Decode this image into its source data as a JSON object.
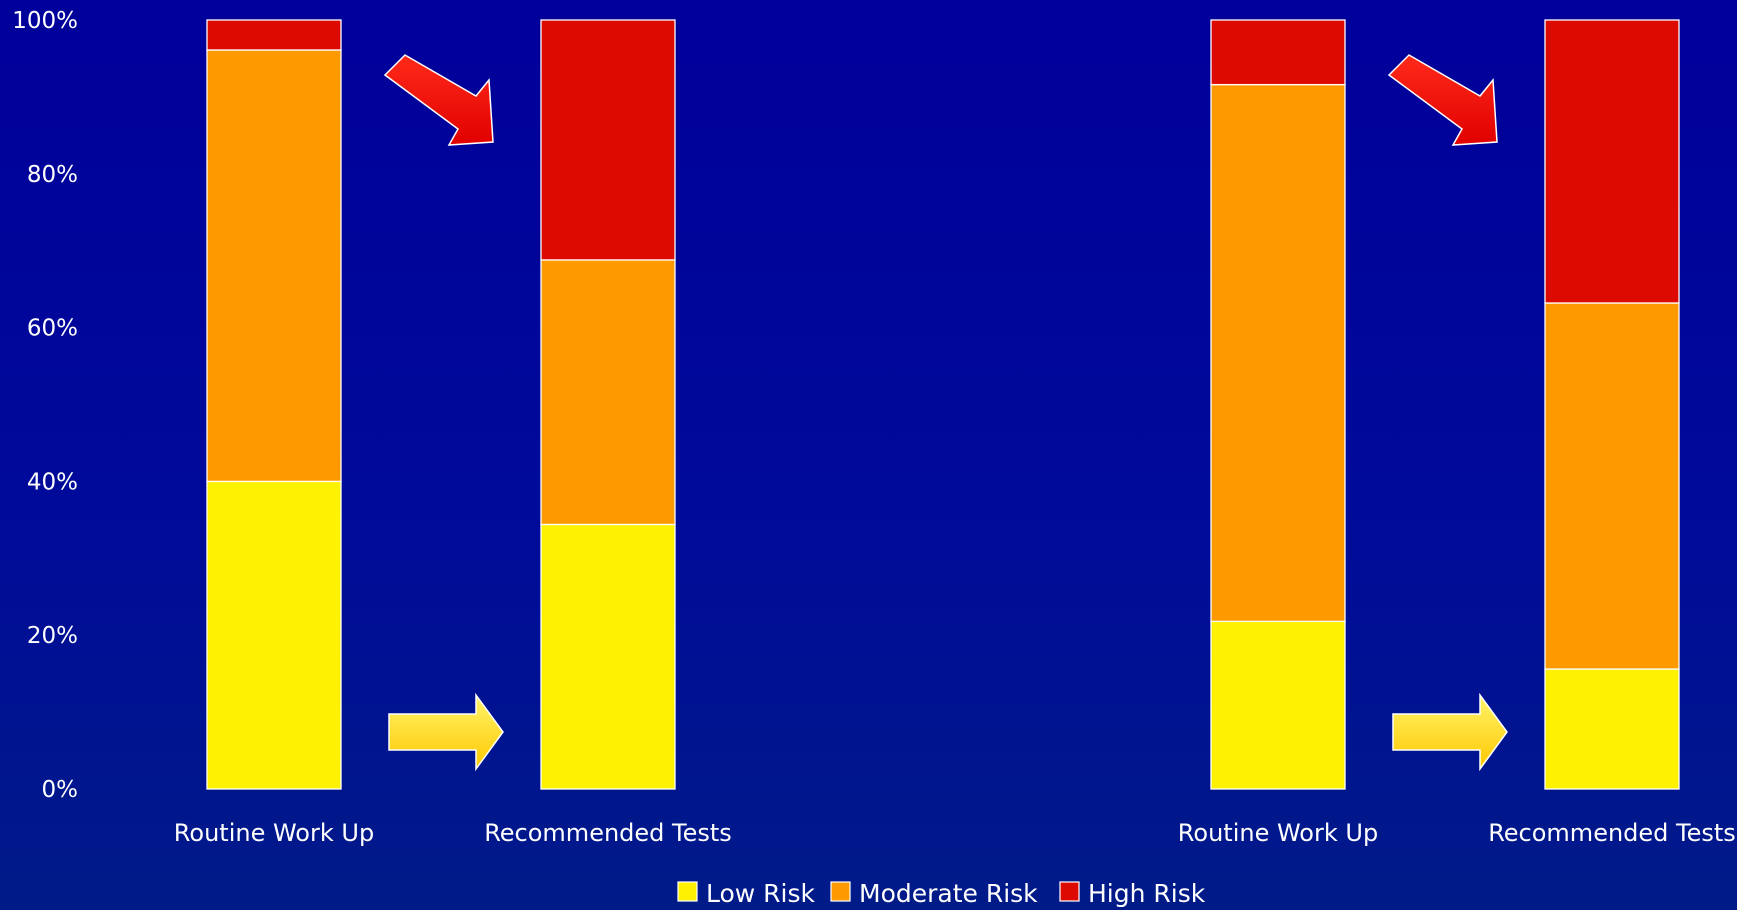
{
  "chart_data": {
    "type": "bar",
    "stacked": true,
    "normalized": true,
    "ylim": [
      0,
      100
    ],
    "yticks": [
      "0%",
      "20%",
      "40%",
      "60%",
      "80%",
      "100%"
    ],
    "grid": false,
    "legend_position": "bottom-center",
    "categories": [
      "Routine Work Up",
      "Recommended Tests",
      "Routine Work Up",
      "Recommended Tests"
    ],
    "series": [
      {
        "name": "Low Risk",
        "color": "#fff200",
        "values": [
          40,
          34.4,
          21.8,
          15.6
        ]
      },
      {
        "name": "Moderate Risk",
        "color": "#ff9900",
        "values": [
          56.1,
          34.4,
          69.8,
          47.6
        ]
      },
      {
        "name": "High Risk",
        "color": "#dc0a00",
        "values": [
          3.9,
          31.2,
          8.4,
          36.8
        ]
      }
    ],
    "annotations": [
      {
        "type": "arrow",
        "color": "red",
        "direction": "down-right",
        "between": [
          0,
          1
        ]
      },
      {
        "type": "arrow",
        "color": "yellow",
        "direction": "right",
        "between": [
          0,
          1
        ]
      },
      {
        "type": "arrow",
        "color": "red",
        "direction": "down-right",
        "between": [
          2,
          3
        ]
      },
      {
        "type": "arrow",
        "color": "yellow",
        "direction": "right",
        "between": [
          2,
          3
        ]
      }
    ]
  }
}
